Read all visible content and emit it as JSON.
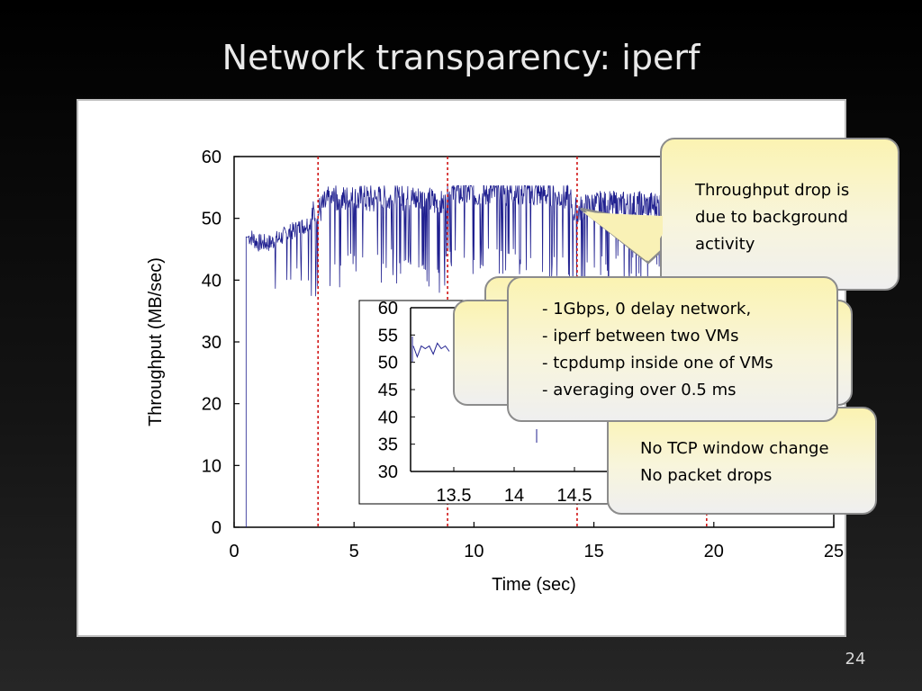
{
  "slide": {
    "title": "Network transparency: iperf",
    "page_number": "24"
  },
  "chart_data": [
    {
      "type": "line",
      "title": "",
      "xlabel": "Time (sec)",
      "ylabel": "Throughput (MB/sec)",
      "xlim": [
        0,
        25
      ],
      "ylim": [
        0,
        60
      ],
      "xticks": [
        "0",
        "5",
        "10",
        "15",
        "20",
        "25"
      ],
      "yticks": [
        "0",
        "10",
        "20",
        "30",
        "40",
        "50",
        "60"
      ],
      "grid": false,
      "legend": "none",
      "series": [
        {
          "color": "#1f1f8f",
          "x": [
            0.5,
            0.6,
            0.7,
            1.0,
            1.5,
            2.0,
            2.5,
            3.0,
            3.5,
            4.0,
            5.0,
            6.0,
            7.0,
            8.0,
            8.8,
            9.0,
            10.0,
            11.0,
            12.0,
            13.0,
            14.0,
            14.2,
            15.0,
            16.0,
            17.0,
            18.0,
            19.0,
            19.6,
            20.0
          ],
          "y": [
            0,
            47,
            47,
            46,
            46,
            47,
            48,
            49,
            50,
            52,
            52,
            52,
            52,
            52,
            51,
            53,
            53,
            53,
            53,
            53,
            52,
            50,
            51,
            51,
            51,
            51,
            51,
            50,
            50
          ]
        }
      ],
      "vlines": [
        3.5,
        8.9,
        14.3,
        19.7
      ],
      "vline_color": "#d01414"
    },
    {
      "type": "line",
      "title": "",
      "xlabel": "",
      "ylabel": "",
      "xticks": [
        "13.5",
        "14",
        "14.5"
      ],
      "yticks": [
        "30",
        "35",
        "40",
        "45",
        "50",
        "55",
        "60"
      ],
      "ylim": [
        30,
        60
      ],
      "series": [
        {
          "color": "#1f1f8f",
          "x": [
            13.0,
            13.05,
            13.1,
            13.15,
            13.2,
            13.25,
            13.3,
            13.35,
            13.4,
            13.45
          ],
          "y": [
            53,
            51,
            53,
            52.5,
            53,
            51.5,
            53.5,
            52.5,
            53,
            52
          ]
        }
      ]
    }
  ],
  "callouts": {
    "background": {
      "lines": [
        "Throughput drop is",
        "due to background",
        "activity"
      ]
    },
    "setup": {
      "lines": [
        "- 1Gbps, 0 delay network,",
        "- iperf between two VMs",
        "- tcpdump inside one of VMs",
        "- averaging over 0.5 ms"
      ]
    },
    "tcp": {
      "lines": [
        "No TCP window change",
        "No packet drops"
      ]
    }
  }
}
